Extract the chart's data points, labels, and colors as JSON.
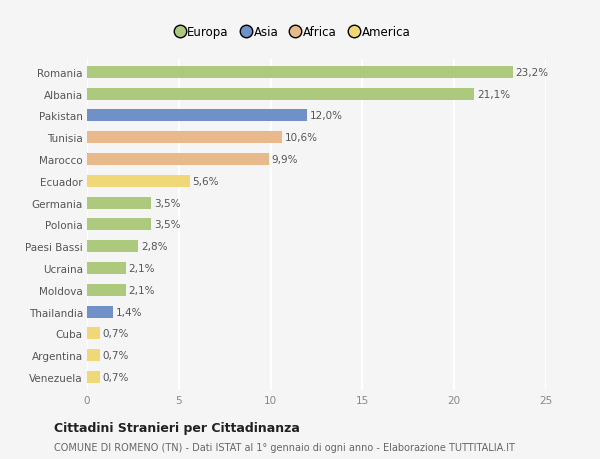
{
  "categories": [
    "Romania",
    "Albania",
    "Pakistan",
    "Tunisia",
    "Marocco",
    "Ecuador",
    "Germania",
    "Polonia",
    "Paesi Bassi",
    "Ucraina",
    "Moldova",
    "Thailandia",
    "Cuba",
    "Argentina",
    "Venezuela"
  ],
  "values": [
    23.2,
    21.1,
    12.0,
    10.6,
    9.9,
    5.6,
    3.5,
    3.5,
    2.8,
    2.1,
    2.1,
    1.4,
    0.7,
    0.7,
    0.7
  ],
  "labels": [
    "23,2%",
    "21,1%",
    "12,0%",
    "10,6%",
    "9,9%",
    "5,6%",
    "3,5%",
    "3,5%",
    "2,8%",
    "2,1%",
    "2,1%",
    "1,4%",
    "0,7%",
    "0,7%",
    "0,7%"
  ],
  "colors": [
    "#adc97e",
    "#adc97e",
    "#7090c8",
    "#e8b98a",
    "#e8b98a",
    "#f0d878",
    "#adc97e",
    "#adc97e",
    "#adc97e",
    "#adc97e",
    "#adc97e",
    "#7090c8",
    "#f0d878",
    "#f0d878",
    "#f0d878"
  ],
  "legend": {
    "Europa": "#adc97e",
    "Asia": "#7090c8",
    "Africa": "#e8b98a",
    "America": "#f0d878"
  },
  "title": "Cittadini Stranieri per Cittadinanza",
  "subtitle": "COMUNE DI ROMENO (TN) - Dati ISTAT al 1° gennaio di ogni anno - Elaborazione TUTTITALIA.IT",
  "xlim": [
    0,
    25
  ],
  "xticks": [
    0,
    5,
    10,
    15,
    20,
    25
  ],
  "background_color": "#f5f5f5",
  "bar_height": 0.55,
  "grid_color": "#ffffff",
  "label_fontsize": 7.5,
  "tick_fontsize": 7.5,
  "title_fontsize": 9,
  "subtitle_fontsize": 7
}
